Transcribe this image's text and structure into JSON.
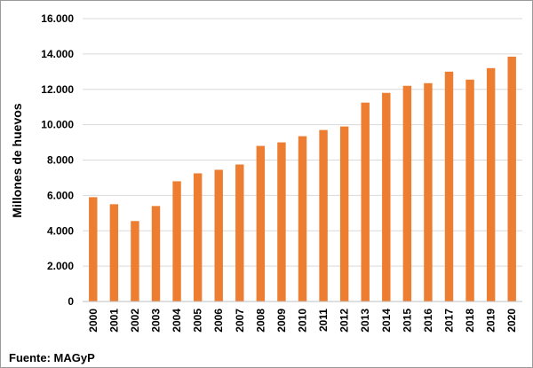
{
  "chart_data": {
    "type": "bar",
    "title": "",
    "xlabel": "",
    "ylabel": "Millones de huevos",
    "source": "Fuente: MAGyP",
    "ylim": [
      0,
      16000
    ],
    "yticks": [
      0,
      2000,
      4000,
      6000,
      8000,
      10000,
      12000,
      14000,
      16000
    ],
    "ytick_labels": [
      "0",
      "2.000",
      "4.000",
      "6.000",
      "8.000",
      "10.000",
      "12.000",
      "14.000",
      "16.000"
    ],
    "categories": [
      "2000",
      "2001",
      "2002",
      "2003",
      "2004",
      "2005",
      "2006",
      "2007",
      "2008",
      "2009",
      "2010",
      "2011",
      "2012",
      "2013",
      "2014",
      "2015",
      "2016",
      "2017",
      "2018",
      "2019",
      "2020"
    ],
    "values": [
      5900,
      5500,
      4550,
      5400,
      6800,
      7250,
      7450,
      7750,
      8800,
      9000,
      9350,
      9700,
      9900,
      11250,
      11800,
      12200,
      12350,
      13000,
      12550,
      13200,
      13850
    ],
    "grid": true,
    "legend": "none",
    "colors": {
      "bar": "#ED7D31",
      "grid": "#d9d9d9",
      "axis": "#bfbfbf",
      "text": "#000000"
    }
  }
}
